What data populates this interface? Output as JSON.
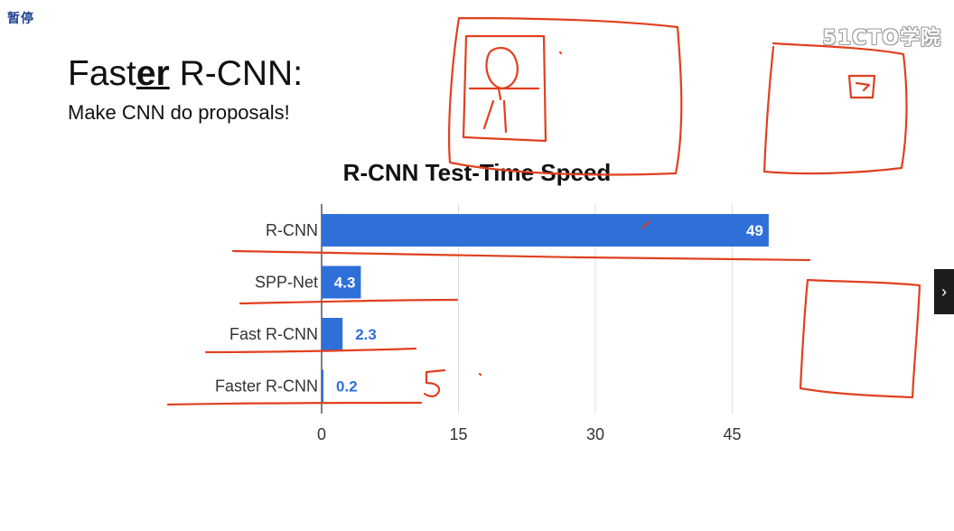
{
  "overlay": {
    "pause_label": "暂停",
    "watermark": "51CTO学院",
    "next_icon": "chevron-right-icon"
  },
  "slide": {
    "title_pre": "Fast",
    "title_emph": "er",
    "title_post": " R-CNN:",
    "subtitle": "Make CNN do proposals!"
  },
  "colors": {
    "bar": "#2f6fd8",
    "value_inside": "#ffffff",
    "value_outside": "#2f6fd8",
    "grid": "#dddddd",
    "ink": "#e0401f"
  },
  "chart_data": {
    "type": "bar",
    "orientation": "horizontal",
    "title": "R-CNN Test-Time Speed",
    "categories": [
      "R-CNN",
      "SPP-Net",
      "Fast R-CNN",
      "Faster R-CNN"
    ],
    "values": [
      49,
      4.3,
      2.3,
      0.2
    ],
    "value_labels": [
      "49",
      "4.3",
      "2.3",
      "0.2"
    ],
    "xlim": [
      0,
      50
    ],
    "xticks": [
      0,
      15,
      30,
      45
    ],
    "grid": true,
    "legend": "none",
    "xlabel": "",
    "ylabel": ""
  }
}
